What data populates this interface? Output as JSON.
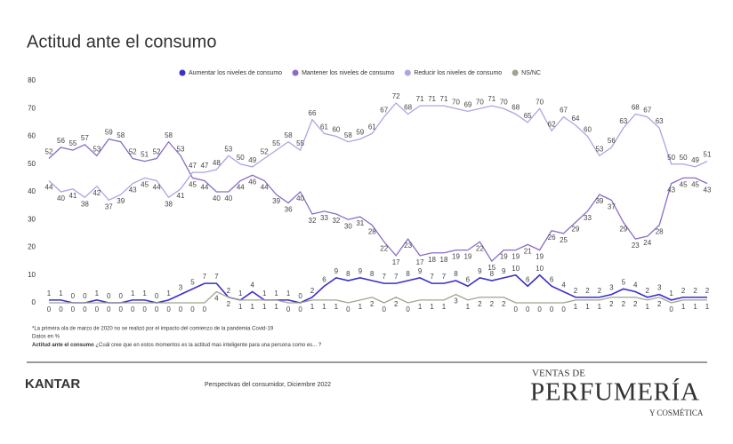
{
  "chart_data": {
    "type": "line",
    "title": "Actitud ante el consumo",
    "ylim": [
      0,
      80
    ],
    "yticks": [
      0,
      10,
      20,
      30,
      40,
      50,
      60,
      70,
      80
    ],
    "grid": false,
    "legend": "top",
    "series": [
      {
        "name": "Aumentar los niveles de consumo",
        "color": "#3b2fc9",
        "values": [
          1,
          1,
          0,
          0,
          1,
          0,
          0,
          1,
          1,
          0,
          1,
          3,
          5,
          7,
          7,
          2,
          1,
          4,
          1,
          1,
          1,
          0,
          2,
          6,
          9,
          8,
          9,
          8,
          7,
          7,
          8,
          9,
          7,
          7,
          8,
          6,
          9,
          8,
          9,
          10,
          6,
          10,
          6,
          4,
          2,
          2,
          2,
          3,
          5,
          4,
          2,
          3,
          1,
          2,
          2,
          2
        ]
      },
      {
        "name": "Mantener los niveles de consumo",
        "color": "#8a6cc6",
        "values": [
          52,
          56,
          55,
          57,
          53,
          59,
          58,
          52,
          51,
          52,
          58,
          53,
          45,
          44,
          40,
          40,
          44,
          46,
          44,
          39,
          36,
          40,
          32,
          33,
          32,
          30,
          31,
          28,
          22,
          17,
          23,
          17,
          18,
          18,
          19,
          19,
          22,
          15,
          19,
          19,
          21,
          19,
          26,
          25,
          29,
          33,
          39,
          37,
          29,
          23,
          24,
          28,
          43,
          45,
          45,
          43
        ]
      },
      {
        "name": "Reducir los niveles de consumo",
        "color": "#b3a1e2",
        "values": [
          44,
          40,
          41,
          38,
          42,
          37,
          39,
          43,
          45,
          44,
          38,
          41,
          47,
          47,
          48,
          53,
          50,
          49,
          52,
          55,
          58,
          55,
          66,
          61,
          60,
          58,
          59,
          61,
          67,
          72,
          68,
          71,
          71,
          71,
          70,
          69,
          70,
          71,
          70,
          68,
          65,
          70,
          62,
          67,
          64,
          60,
          53,
          56,
          63,
          68,
          67,
          63,
          50,
          50,
          49,
          51
        ]
      },
      {
        "name": "NS/NC",
        "color": "#9fa392",
        "values": [
          0,
          0,
          0,
          0,
          0,
          0,
          0,
          0,
          0,
          0,
          0,
          0,
          0,
          0,
          4,
          2,
          1,
          1,
          1,
          1,
          0,
          0,
          1,
          1,
          1,
          0,
          1,
          2,
          0,
          2,
          0,
          1,
          1,
          1,
          3,
          1,
          2,
          2,
          2,
          0,
          0,
          0,
          0,
          0,
          1,
          1,
          1,
          2,
          2,
          2,
          1,
          2,
          0,
          1,
          1,
          1
        ]
      }
    ]
  },
  "notes": [
    "*La primera ola de marzo de 2020 no se realizó por el impacto del comienzo de la pandemia Covid-19",
    "Datos en %"
  ],
  "question": {
    "label": "Actitud ante el consumo",
    "text": " ¿Cuál cree que en estos momentos es la actitud mas inteligente para una persona como es... ?"
  },
  "footer": {
    "brand": "KANTAR",
    "source": "Perspectivas del consumidor, Diciembre 2022",
    "logo_top": "VENTAS DE",
    "logo_main": "PERFUMERÍA",
    "logo_sub": "Y COSMÉTICA"
  }
}
